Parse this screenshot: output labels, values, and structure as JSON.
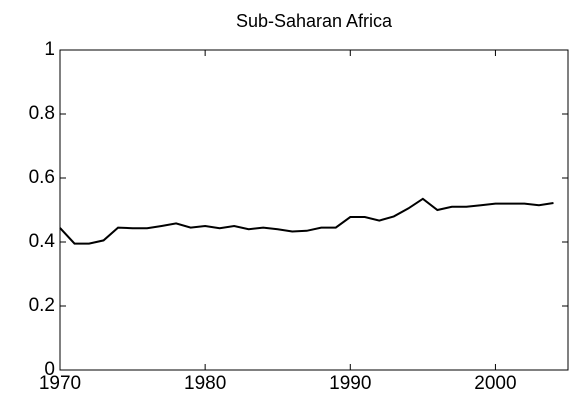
{
  "chart_data": {
    "type": "line",
    "title": "Sub-Saharan Africa",
    "x": [
      1970,
      1971,
      1972,
      1973,
      1974,
      1975,
      1976,
      1977,
      1978,
      1979,
      1980,
      1981,
      1982,
      1983,
      1984,
      1985,
      1986,
      1987,
      1988,
      1989,
      1990,
      1991,
      1992,
      1993,
      1994,
      1995,
      1996,
      1997,
      1998,
      1999,
      2000,
      2001,
      2002,
      2003,
      2004
    ],
    "series": [
      {
        "name": "Sub-Saharan Africa",
        "color": "#000000",
        "values": [
          0.444,
          0.395,
          0.395,
          0.405,
          0.445,
          0.443,
          0.443,
          0.45,
          0.458,
          0.445,
          0.45,
          0.443,
          0.45,
          0.44,
          0.445,
          0.44,
          0.433,
          0.435,
          0.445,
          0.445,
          0.478,
          0.478,
          0.467,
          0.48,
          0.505,
          0.535,
          0.5,
          0.51,
          0.51,
          0.515,
          0.52,
          0.52,
          0.52,
          0.515,
          0.522
        ]
      }
    ],
    "xlim": [
      1970,
      2005
    ],
    "xticks": [
      1970,
      1980,
      1990,
      2000
    ],
    "ylim": [
      0,
      1
    ],
    "yticks": [
      0,
      0.2,
      0.4,
      0.6,
      0.8,
      1
    ],
    "grid": false
  }
}
